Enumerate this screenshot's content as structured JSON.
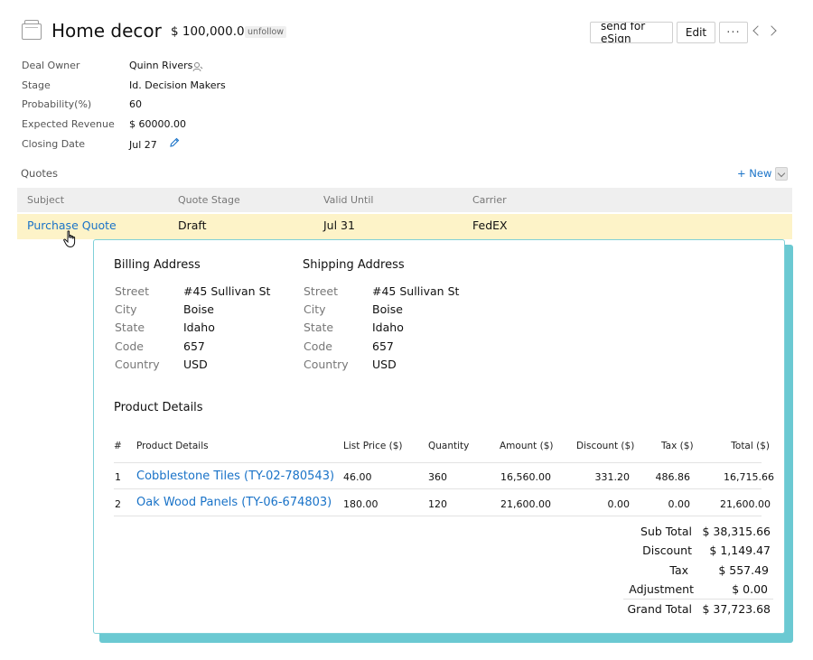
{
  "header": {
    "title": "Home decor",
    "amount": "$ 100,000.00",
    "unfollow": "unfollow",
    "esign_label": "send for eSign",
    "edit_label": "Edit",
    "more_label": "···"
  },
  "fields": [
    {
      "label": "Deal Owner",
      "value": "Quinn Rivers"
    },
    {
      "label": "Stage",
      "value": "Id. Decision Makers"
    },
    {
      "label": "Probability(%)",
      "value": "60"
    },
    {
      "label": "Expected Revenue",
      "value": "$ 60000.00"
    },
    {
      "label": "Closing Date",
      "value": "Jul 27"
    }
  ],
  "quotes": {
    "section_label": "Quotes",
    "new_label": "+ New",
    "columns": [
      "Subject",
      "Quote Stage",
      "Valid Until",
      "Carrier"
    ],
    "rows": [
      {
        "subject": "Purchase Quote",
        "stage": "Draft",
        "valid_until": "Jul 31",
        "carrier": "FedEX"
      }
    ]
  },
  "popover": {
    "billing": {
      "title": "Billing Address",
      "rows": [
        {
          "label": "Street",
          "value": "#45 Sullivan St"
        },
        {
          "label": "City",
          "value": "Boise"
        },
        {
          "label": "State",
          "value": "Idaho"
        },
        {
          "label": "Code",
          "value": "657"
        },
        {
          "label": "Country",
          "value": "USD"
        }
      ]
    },
    "shipping": {
      "title": "Shipping Address",
      "rows": [
        {
          "label": "Street",
          "value": "#45 Sullivan St"
        },
        {
          "label": "City",
          "value": "Boise"
        },
        {
          "label": "State",
          "value": "Idaho"
        },
        {
          "label": "Code",
          "value": "657"
        },
        {
          "label": "Country",
          "value": "USD"
        }
      ]
    },
    "products_title": "Product Details",
    "product_columns": [
      "#",
      "Product Details",
      "List Price ($)",
      "Quantity",
      "Amount ($)",
      "Discount ($)",
      "Tax ($)",
      "Total ($)"
    ],
    "products": [
      {
        "num": "1",
        "name": "Cobblestone Tiles (TY-02-780543)",
        "list_price": "46.00",
        "quantity": "360",
        "amount": "16,560.00",
        "discount": "331.20",
        "tax": "486.86",
        "total": "16,715.66"
      },
      {
        "num": "2",
        "name": "Oak Wood Panels (TY-06-674803)",
        "list_price": "180.00",
        "quantity": "120",
        "amount": "21,600.00",
        "discount": "0.00",
        "tax": "0.00",
        "total": "21,600.00"
      }
    ],
    "totals": [
      {
        "label": "Sub Total",
        "value": "$ 38,315.66"
      },
      {
        "label": "Discount",
        "value": "$ 1,149.47"
      },
      {
        "label": "Tax",
        "value": "$ 557.49"
      },
      {
        "label": "Adjustment",
        "value": "$ 0.00"
      },
      {
        "label": "Grand Total",
        "value": "$ 37,723.68"
      }
    ]
  },
  "colors": {
    "link": "#1a73c8",
    "row_highlight": "#fdf3c8",
    "popover_accent": "#6bc9d2"
  }
}
